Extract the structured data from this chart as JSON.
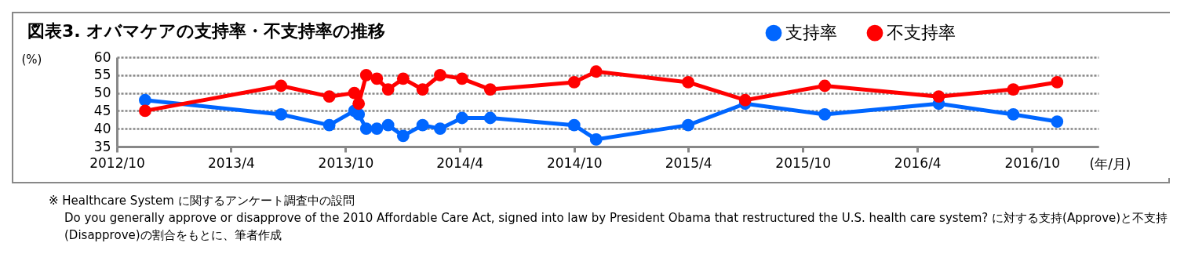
{
  "chart_data": {
    "type": "line",
    "title": "図表3. オバマケアの支持率・不支持率の推移",
    "ylabel": "(%)",
    "xlabel": "(年/月)",
    "x": [
      "2012-11-15",
      "2013-06-20",
      "2013-09-05",
      "2013-10-15",
      "2013-10-22",
      "2013-11-03",
      "2013-11-20",
      "2013-12-08",
      "2014-01-01",
      "2014-02-01",
      "2014-03-01",
      "2014-04-05",
      "2014-05-20",
      "2014-10-01",
      "2014-11-05",
      "2015-04-01",
      "2015-07-01",
      "2015-11-05",
      "2016-05-05",
      "2016-09-01",
      "2016-11-10"
    ],
    "series": [
      {
        "name": "支持率",
        "color": "#0066ff",
        "values": [
          48,
          44,
          41,
          45,
          44,
          40,
          40,
          41,
          38,
          41,
          40,
          43,
          43,
          41,
          37,
          41,
          47,
          44,
          47,
          44,
          42
        ]
      },
      {
        "name": "不支持率",
        "color": "#ff0000",
        "values": [
          45,
          52,
          49,
          50,
          47,
          55,
          54,
          51,
          54,
          51,
          55,
          54,
          51,
          53,
          56,
          53,
          48,
          52,
          49,
          51,
          53
        ]
      }
    ],
    "xlim": [
      "2012-10-01",
      "2017-01-15"
    ],
    "xticks": [
      {
        "value": "2012-10-01",
        "label": "2012/10"
      },
      {
        "value": "2013-04-01",
        "label": "2013/4"
      },
      {
        "value": "2013-10-01",
        "label": "2013/10"
      },
      {
        "value": "2014-04-01",
        "label": "2014/4"
      },
      {
        "value": "2014-10-01",
        "label": "2014/10"
      },
      {
        "value": "2015-04-01",
        "label": "2015/4"
      },
      {
        "value": "2015-10-01",
        "label": "2015/10"
      },
      {
        "value": "2016-04-01",
        "label": "2016/4"
      },
      {
        "value": "2016-10-01",
        "label": "2016/10"
      }
    ],
    "ylim": [
      35,
      60
    ],
    "yticks": [
      35,
      40,
      45,
      50,
      55,
      60
    ],
    "grid": "y",
    "legend": "top right",
    "marker": "circle",
    "line_style": "solid",
    "annotations": [
      "※ Healthcare System に関するアンケート調査中の設問",
      "Do you generally approve or disapprove of the 2010 Affordable Care Act, signed into law by President Obama that restructured the U.S. health care system? に対する支持(Approve)と不支持(Disapprove)の割合をもとに、筆者作成"
    ]
  }
}
